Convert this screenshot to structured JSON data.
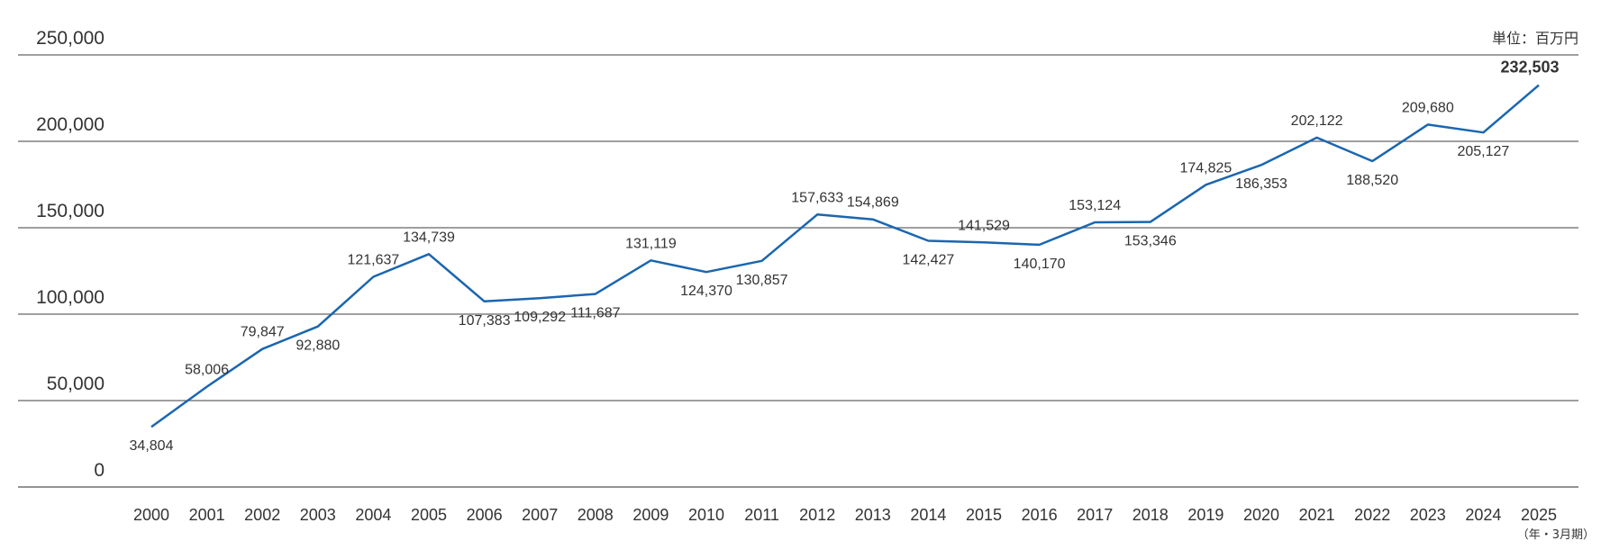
{
  "chart_data": {
    "type": "line",
    "unit_label": "単位：百万円",
    "x_period_label": "（年・3月期）",
    "ylim": [
      0,
      250000
    ],
    "y_ticks": [
      {
        "value": 0,
        "label": "0"
      },
      {
        "value": 50000,
        "label": "50,000"
      },
      {
        "value": 100000,
        "label": "100,000"
      },
      {
        "value": 150000,
        "label": "150,000"
      },
      {
        "value": 200000,
        "label": "200,000"
      },
      {
        "value": 250000,
        "label": "250,000"
      }
    ],
    "grid": true,
    "line_color": "#1a66b0",
    "categories": [
      "2000",
      "2001",
      "2002",
      "2003",
      "2004",
      "2005",
      "2006",
      "2007",
      "2008",
      "2009",
      "2010",
      "2011",
      "2012",
      "2013",
      "2014",
      "2015",
      "2016",
      "2017",
      "2018",
      "2019",
      "2020",
      "2021",
      "2022",
      "2023",
      "2024",
      "2025"
    ],
    "values": [
      34804,
      58006,
      79847,
      92880,
      121637,
      134739,
      107383,
      109292,
      111687,
      131119,
      124370,
      130857,
      157633,
      154869,
      142427,
      141529,
      140170,
      153124,
      153346,
      174825,
      186353,
      202122,
      188520,
      209680,
      205127,
      232503
    ],
    "value_labels": [
      "34,804",
      "58,006",
      "79,847",
      "92,880",
      "121,637",
      "134,739",
      "107,383",
      "109,292",
      "111,687",
      "131,119",
      "124,370",
      "130,857",
      "157,633",
      "154,869",
      "142,427",
      "141,529",
      "140,170",
      "153,124",
      "153,346",
      "174,825",
      "186,353",
      "202,122",
      "188,520",
      "209,680",
      "205,127",
      "232,503"
    ]
  }
}
